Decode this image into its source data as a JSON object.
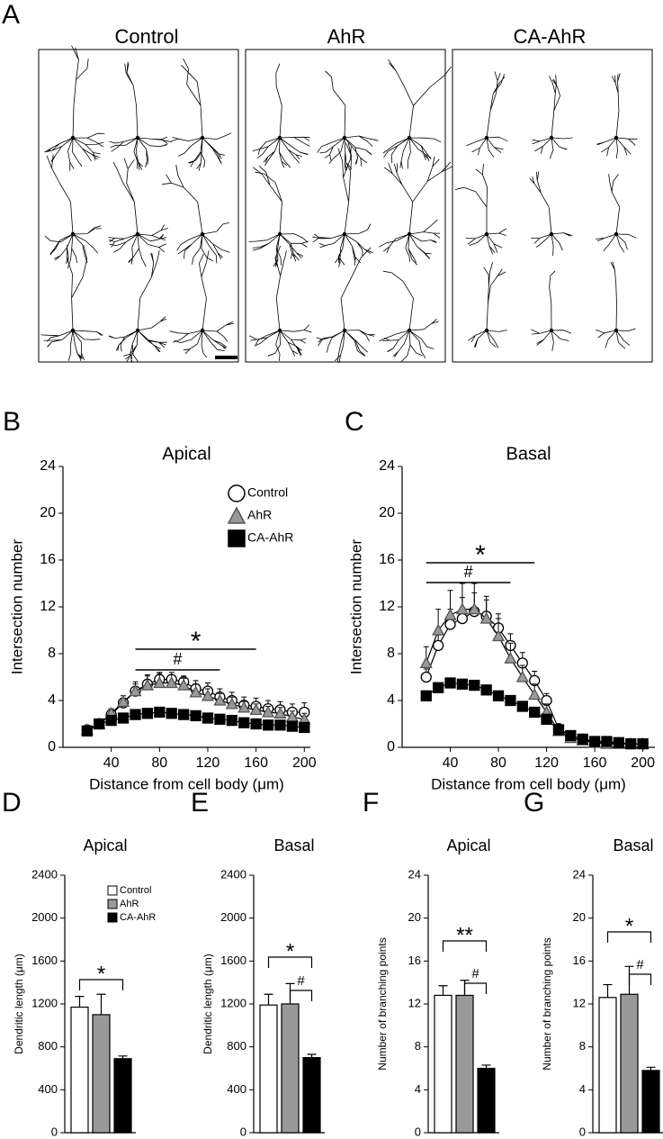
{
  "panel_a": {
    "panel_label": "A",
    "groups": [
      "Control",
      "AhR",
      "CA-AhR"
    ]
  },
  "chart_data": [
    {
      "type": "line",
      "panel_label": "B",
      "title": "Apical",
      "x_label": "Distance from cell body (μm)",
      "y_label": "Intersection number",
      "x": [
        20,
        30,
        40,
        50,
        60,
        70,
        80,
        90,
        100,
        110,
        120,
        130,
        140,
        150,
        160,
        170,
        180,
        190,
        200
      ],
      "xlim": [
        0,
        205
      ],
      "xticks": [
        40,
        80,
        120,
        160,
        200
      ],
      "ylim": [
        0,
        24
      ],
      "yticks": [
        0,
        4,
        8,
        12,
        16,
        20,
        24
      ],
      "legend": "upper right",
      "series": [
        {
          "name": "Control",
          "color": "#ffffff",
          "marker": "circle",
          "values": [
            1.5,
            2.0,
            2.8,
            3.8,
            4.8,
            5.4,
            5.8,
            5.8,
            5.6,
            5.0,
            4.8,
            4.3,
            4.0,
            3.6,
            3.5,
            3.3,
            3.2,
            3.0,
            3.0
          ],
          "errors": [
            0.3,
            0.3,
            0.3,
            0.4,
            0.6,
            0.7,
            0.6,
            0.6,
            0.5,
            0.7,
            0.7,
            0.7,
            0.7,
            0.7,
            0.7,
            0.7,
            0.7,
            0.7,
            0.8
          ]
        },
        {
          "name": "AhR",
          "color": "#999999",
          "marker": "triangle",
          "values": [
            1.5,
            2.0,
            2.9,
            3.9,
            4.8,
            5.3,
            5.5,
            5.5,
            5.3,
            4.7,
            4.4,
            4.0,
            3.7,
            3.4,
            3.2,
            3.0,
            2.9,
            2.6,
            2.4
          ],
          "errors": [
            0.3,
            0.3,
            0.4,
            0.5,
            0.8,
            0.9,
            0.8,
            0.7,
            0.6,
            0.7,
            0.6,
            0.6,
            0.6,
            0.5,
            0.5,
            0.5,
            0.5,
            0.5,
            0.5
          ]
        },
        {
          "name": "CA-AhR",
          "color": "#000000",
          "marker": "square",
          "values": [
            1.4,
            2.0,
            2.3,
            2.5,
            2.8,
            2.9,
            3.0,
            2.9,
            2.8,
            2.7,
            2.5,
            2.4,
            2.3,
            2.1,
            2.0,
            1.9,
            1.9,
            1.8,
            1.7
          ],
          "errors": [
            0.2,
            0.2,
            0.2,
            0.2,
            0.2,
            0.2,
            0.2,
            0.2,
            0.2,
            0.2,
            0.2,
            0.2,
            0.2,
            0.2,
            0.2,
            0.2,
            0.2,
            0.2,
            0.2
          ]
        }
      ],
      "annotations": [
        {
          "label": "*",
          "x": [
            60,
            160
          ]
        },
        {
          "label": "#",
          "x": [
            60,
            130
          ]
        }
      ]
    },
    {
      "type": "line",
      "panel_label": "C",
      "title": "Basal",
      "x_label": "Distance from cell body (μm)",
      "y_label": "Intersection number",
      "x": [
        20,
        30,
        40,
        50,
        60,
        70,
        80,
        90,
        100,
        110,
        120,
        130,
        140,
        150,
        160,
        170,
        180,
        190,
        200
      ],
      "xlim": [
        0,
        210
      ],
      "xticks": [
        40,
        80,
        120,
        160,
        200
      ],
      "ylim": [
        0,
        24
      ],
      "yticks": [
        0,
        4,
        8,
        12,
        16,
        20,
        24
      ],
      "series": [
        {
          "color": "#ffffff",
          "marker": "circle",
          "values": [
            6.0,
            8.7,
            10.5,
            11.0,
            11.6,
            11.2,
            10.2,
            8.7,
            7.2,
            5.7,
            4.0,
            1.6,
            1.0,
            0.7,
            0.5,
            0.4,
            0.4,
            0.3,
            0.3
          ],
          "errors": [
            0.7,
            0.9,
            1.3,
            1.8,
            1.6,
            1.4,
            1.2,
            1.0,
            0.9,
            0.8,
            0.6,
            0.4,
            0.3,
            0.3,
            0.3,
            0.3,
            0.3,
            0.2,
            0.2
          ]
        },
        {
          "color": "#999999",
          "marker": "triangle",
          "values": [
            7.2,
            10.0,
            11.3,
            11.8,
            11.8,
            11.0,
            9.5,
            7.6,
            6.0,
            4.5,
            3.0,
            1.4,
            0.8,
            0.6,
            0.4,
            0.3,
            0.3,
            0.3,
            0.3
          ],
          "errors": [
            1.4,
            1.8,
            2.1,
            2.2,
            2.2,
            1.9,
            1.5,
            1.3,
            1.0,
            0.9,
            0.7,
            0.5,
            0.4,
            0.3,
            0.3,
            0.3,
            0.3,
            0.2,
            0.2
          ]
        },
        {
          "color": "#000000",
          "marker": "square",
          "values": [
            4.4,
            5.1,
            5.5,
            5.4,
            5.3,
            4.9,
            4.4,
            4.0,
            3.5,
            3.0,
            2.4,
            1.5,
            1.0,
            0.7,
            0.5,
            0.5,
            0.4,
            0.3,
            0.3
          ],
          "errors": [
            0.3,
            0.3,
            0.3,
            0.3,
            0.3,
            0.3,
            0.3,
            0.3,
            0.3,
            0.3,
            0.3,
            0.3,
            0.3,
            0.3,
            0.3,
            0.3,
            0.3,
            0.3,
            0.3
          ]
        }
      ],
      "annotations": [
        {
          "label": "*",
          "x": [
            20,
            110
          ]
        },
        {
          "label": "#",
          "x": [
            20,
            90
          ]
        }
      ]
    },
    {
      "type": "bar",
      "panel_label": "D",
      "title": "Apical",
      "y_label": "Dendritic length (μm)",
      "values": [
        1170,
        1100,
        690
      ],
      "errors": [
        100,
        190,
        25
      ],
      "colors": [
        "#ffffff",
        "#999999",
        "#000000"
      ],
      "ylim": [
        0,
        2400
      ],
      "yticks": [
        0,
        400,
        800,
        1200,
        1600,
        2000,
        2400
      ],
      "legend": "upper center",
      "legend_labels": [
        "Control",
        "AhR",
        "CA-AhR"
      ],
      "annotations": [
        {
          "label": "*",
          "between": [
            0,
            2
          ]
        }
      ]
    },
    {
      "type": "bar",
      "panel_label": "E",
      "title": "Basal",
      "y_label": "Dendritic length (μm)",
      "values": [
        1190,
        1200,
        700
      ],
      "errors": [
        100,
        190,
        30
      ],
      "colors": [
        "#ffffff",
        "#999999",
        "#000000"
      ],
      "ylim": [
        0,
        2400
      ],
      "yticks": [
        0,
        400,
        800,
        1200,
        1600,
        2000,
        2400
      ],
      "annotations": [
        {
          "label": "*",
          "between": [
            0,
            2
          ]
        },
        {
          "label": "#",
          "between": [
            1,
            2
          ]
        }
      ]
    },
    {
      "type": "bar",
      "panel_label": "F",
      "title": "Apical",
      "y_label": "Number of branching points",
      "values": [
        12.8,
        12.8,
        6.0
      ],
      "errors": [
        0.9,
        1.4,
        0.3
      ],
      "colors": [
        "#ffffff",
        "#999999",
        "#000000"
      ],
      "ylim": [
        0,
        24
      ],
      "yticks": [
        0,
        4,
        8,
        12,
        16,
        20,
        24
      ],
      "annotations": [
        {
          "label": "**",
          "between": [
            0,
            2
          ]
        },
        {
          "label": "#",
          "between": [
            1,
            2
          ]
        }
      ]
    },
    {
      "type": "bar",
      "panel_label": "G",
      "title": "Basal",
      "y_label": "Number of branching points",
      "values": [
        12.6,
        12.9,
        5.8
      ],
      "errors": [
        1.2,
        2.6,
        0.3
      ],
      "colors": [
        "#ffffff",
        "#999999",
        "#000000"
      ],
      "ylim": [
        0,
        24
      ],
      "yticks": [
        0,
        4,
        8,
        12,
        16,
        20,
        24
      ],
      "annotations": [
        {
          "label": "*",
          "between": [
            0,
            2
          ]
        },
        {
          "label": "#",
          "between": [
            1,
            2
          ]
        }
      ]
    }
  ]
}
